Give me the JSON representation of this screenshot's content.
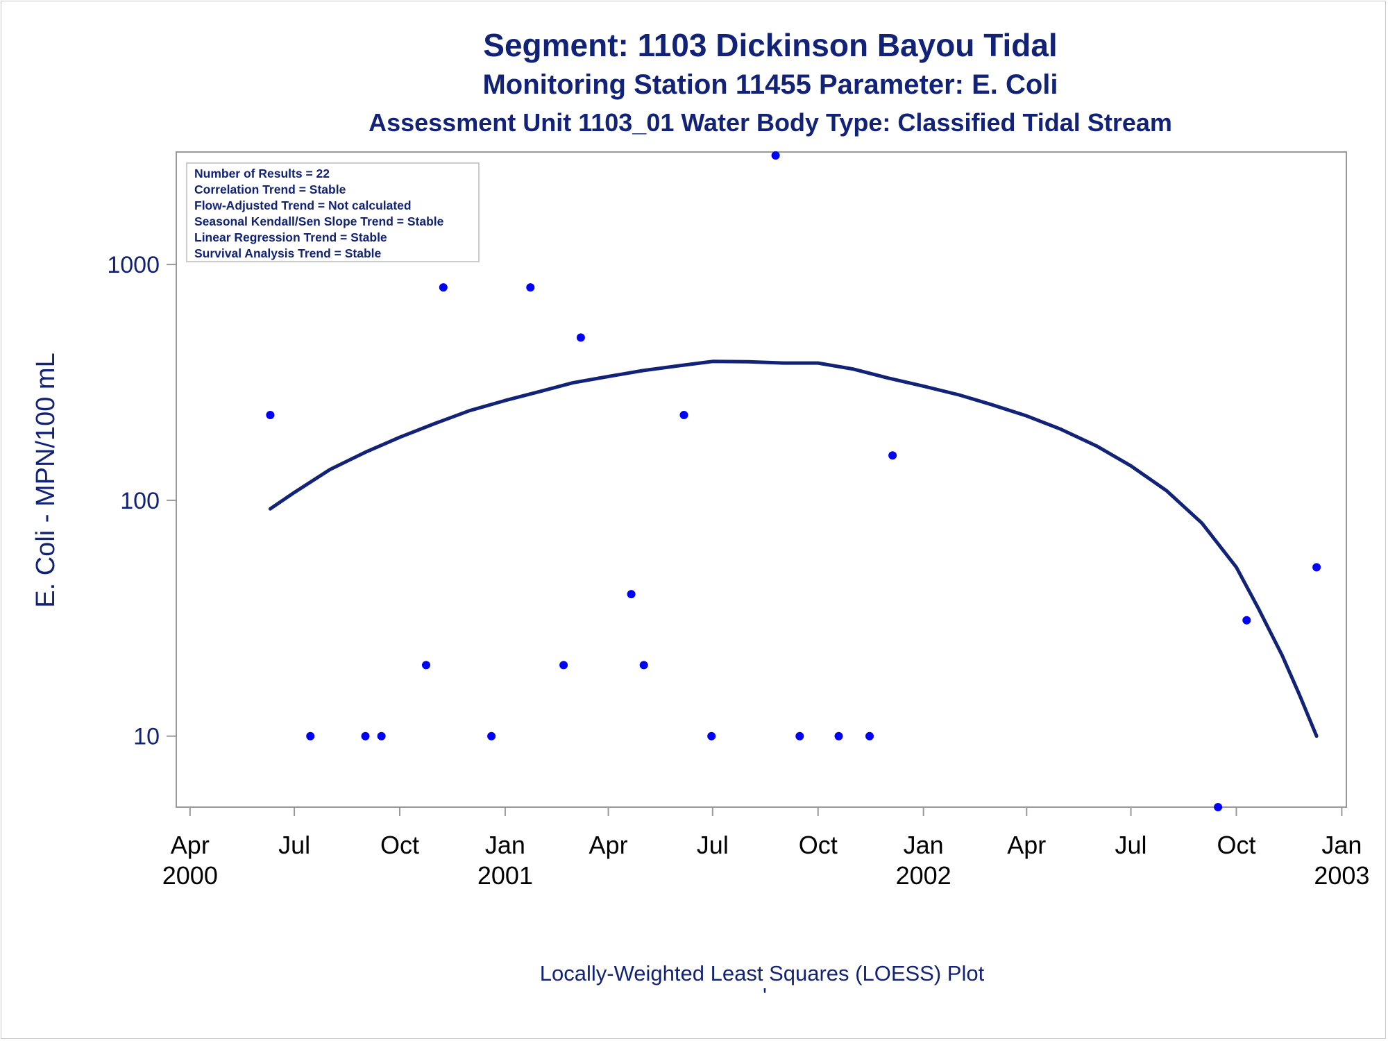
{
  "titles": [
    "Segment: 1103  Dickinson Bayou Tidal",
    "Monitoring Station 11455 Parameter: E. Coli",
    "Assessment Unit 1103_01   Water Body Type: Classified Tidal Stream"
  ],
  "stats_box": [
    "Number of Results = 22",
    "Correlation Trend = Stable",
    "Flow-Adjusted Trend = Not calculated",
    "Seasonal Kendall/Sen Slope Trend = Stable",
    "Linear Regression Trend = Stable",
    "Survival Analysis Trend = Stable"
  ],
  "footer": "Locally-Weighted Least Squares (LOESS) Plot",
  "footer_mark": "'",
  "colors": {
    "text": "#112277",
    "points": "#0000ff",
    "curve": "#112277",
    "axis": "#999999"
  },
  "chart_data": {
    "type": "scatter",
    "scale_y": "log",
    "ylabel": "E. Coli - MPN/100 mL",
    "xlabel": "",
    "ylim": [
      5,
      3000
    ],
    "xlim": [
      "2000-03-20",
      "2003-01-05"
    ],
    "y_ticks": [
      10,
      100,
      1000
    ],
    "y_tick_labels": [
      "10",
      "100",
      "1000"
    ],
    "x_ticks": [
      {
        "date": "2000-04-01",
        "lines": [
          "Apr",
          "2000"
        ]
      },
      {
        "date": "2000-07-01",
        "lines": [
          "Jul"
        ]
      },
      {
        "date": "2000-10-01",
        "lines": [
          "Oct"
        ]
      },
      {
        "date": "2001-01-01",
        "lines": [
          "Jan",
          "2001"
        ]
      },
      {
        "date": "2001-04-01",
        "lines": [
          "Apr"
        ]
      },
      {
        "date": "2001-07-01",
        "lines": [
          "Jul"
        ]
      },
      {
        "date": "2001-10-01",
        "lines": [
          "Oct"
        ]
      },
      {
        "date": "2002-01-01",
        "lines": [
          "Jan",
          "2002"
        ]
      },
      {
        "date": "2002-04-01",
        "lines": [
          "Apr"
        ]
      },
      {
        "date": "2002-07-01",
        "lines": [
          "Jul"
        ]
      },
      {
        "date": "2002-10-01",
        "lines": [
          "Oct"
        ]
      },
      {
        "date": "2003-01-01",
        "lines": [
          "Jan",
          "2003"
        ]
      }
    ],
    "points": [
      {
        "x": "2000-06-10",
        "y": 230
      },
      {
        "x": "2000-07-15",
        "y": 10
      },
      {
        "x": "2000-09-01",
        "y": 10
      },
      {
        "x": "2000-09-15",
        "y": 10
      },
      {
        "x": "2000-10-24",
        "y": 20
      },
      {
        "x": "2000-11-08",
        "y": 800
      },
      {
        "x": "2000-12-20",
        "y": 10
      },
      {
        "x": "2001-01-23",
        "y": 800
      },
      {
        "x": "2001-02-21",
        "y": 20
      },
      {
        "x": "2001-03-08",
        "y": 490
      },
      {
        "x": "2001-04-21",
        "y": 40
      },
      {
        "x": "2001-05-02",
        "y": 20
      },
      {
        "x": "2001-06-06",
        "y": 230
      },
      {
        "x": "2001-06-30",
        "y": 10
      },
      {
        "x": "2001-08-25",
        "y": 2900
      },
      {
        "x": "2001-09-15",
        "y": 10
      },
      {
        "x": "2001-10-19",
        "y": 10
      },
      {
        "x": "2001-11-15",
        "y": 10
      },
      {
        "x": "2001-12-05",
        "y": 155
      },
      {
        "x": "2002-09-15",
        "y": 5
      },
      {
        "x": "2002-10-10",
        "y": 31
      },
      {
        "x": "2002-12-10",
        "y": 52
      }
    ],
    "loess": [
      {
        "x": "2000-06-10",
        "y": 92
      },
      {
        "x": "2000-07-01",
        "y": 108
      },
      {
        "x": "2000-08-01",
        "y": 135
      },
      {
        "x": "2000-09-01",
        "y": 160
      },
      {
        "x": "2000-10-01",
        "y": 185
      },
      {
        "x": "2000-11-01",
        "y": 212
      },
      {
        "x": "2000-12-01",
        "y": 240
      },
      {
        "x": "2001-01-01",
        "y": 265
      },
      {
        "x": "2001-02-01",
        "y": 290
      },
      {
        "x": "2001-03-01",
        "y": 315
      },
      {
        "x": "2001-04-01",
        "y": 335
      },
      {
        "x": "2001-05-01",
        "y": 355
      },
      {
        "x": "2001-06-01",
        "y": 372
      },
      {
        "x": "2001-07-01",
        "y": 388
      },
      {
        "x": "2001-08-01",
        "y": 387
      },
      {
        "x": "2001-09-01",
        "y": 382
      },
      {
        "x": "2001-10-01",
        "y": 382
      },
      {
        "x": "2001-11-01",
        "y": 360
      },
      {
        "x": "2001-12-01",
        "y": 330
      },
      {
        "x": "2002-01-01",
        "y": 305
      },
      {
        "x": "2002-02-01",
        "y": 280
      },
      {
        "x": "2002-03-01",
        "y": 255
      },
      {
        "x": "2002-04-01",
        "y": 228
      },
      {
        "x": "2002-05-01",
        "y": 200
      },
      {
        "x": "2002-06-01",
        "y": 170
      },
      {
        "x": "2002-07-01",
        "y": 140
      },
      {
        "x": "2002-08-01",
        "y": 110
      },
      {
        "x": "2002-09-01",
        "y": 80
      },
      {
        "x": "2002-10-01",
        "y": 52
      },
      {
        "x": "2002-10-20",
        "y": 35
      },
      {
        "x": "2002-11-10",
        "y": 22
      },
      {
        "x": "2002-11-25",
        "y": 15
      },
      {
        "x": "2002-12-10",
        "y": 10
      }
    ]
  }
}
